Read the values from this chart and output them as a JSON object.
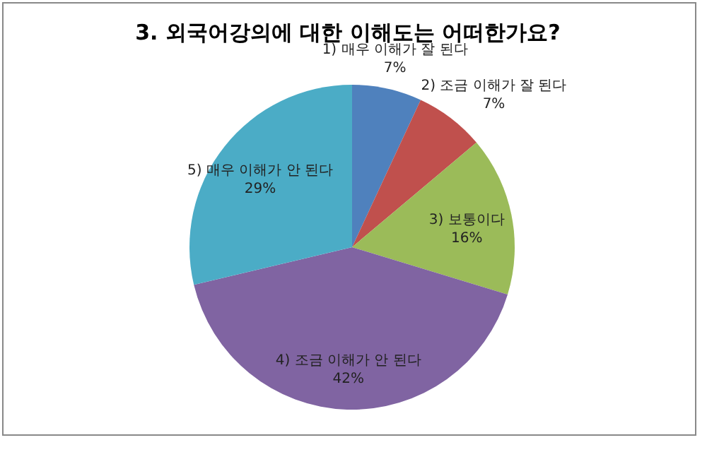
{
  "chart_data": {
    "type": "pie",
    "title": "3. 외국어강의에 대한 이해도는 어떠한가요?",
    "categories": [
      "1) 매우 이해가 잘 된다",
      "2) 조금 이해가 잘 된다",
      "3) 보통이다",
      "4) 조금 이해가 안 된다",
      "5) 매우 이해가 안 된다"
    ],
    "values": [
      7,
      7,
      16,
      42,
      29
    ],
    "value_labels": [
      "7%",
      "7%",
      "16%",
      "42%",
      "29%"
    ],
    "colors": [
      "#4f81bd",
      "#c0504d",
      "#9bbb59",
      "#8064a2",
      "#4bacc6"
    ]
  }
}
